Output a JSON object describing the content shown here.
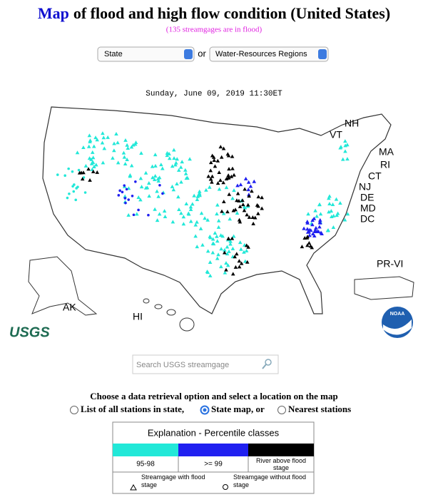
{
  "header": {
    "title_lead": "Map",
    "title_rest": "of flood and high flow condition (United States)",
    "subtitle": "(135 streamgages are in flood)"
  },
  "selects": {
    "first": "State",
    "or": "or",
    "second": "Water-Resources Regions"
  },
  "date": "Sunday, June 09, 2019 11:30ET",
  "map_labels": {
    "nh": "NH",
    "vt": "VT",
    "ma": "MA",
    "ri": "RI",
    "ct": "CT",
    "nj": "NJ",
    "de": "DE",
    "md": "MD",
    "dc": "DC",
    "prvi": "PR-VI",
    "ak": "AK",
    "hi": "HI",
    "usgs": "USGS",
    "noaa": "NOAA"
  },
  "search": {
    "placeholder": "Search USGS streamgage"
  },
  "options": {
    "prompt": "Choose a data retrieval option and select a location on the map",
    "list": "List of all stations in state,",
    "state_map": "State map, or",
    "nearest": "Nearest stations"
  },
  "legend": {
    "title": "Explanation - Percentile classes",
    "classes": [
      "95-98",
      ">= 99",
      "River above flood stage"
    ],
    "with_flood": "Streamgage with flood stage",
    "without_flood": "Streamgage without flood stage"
  }
}
